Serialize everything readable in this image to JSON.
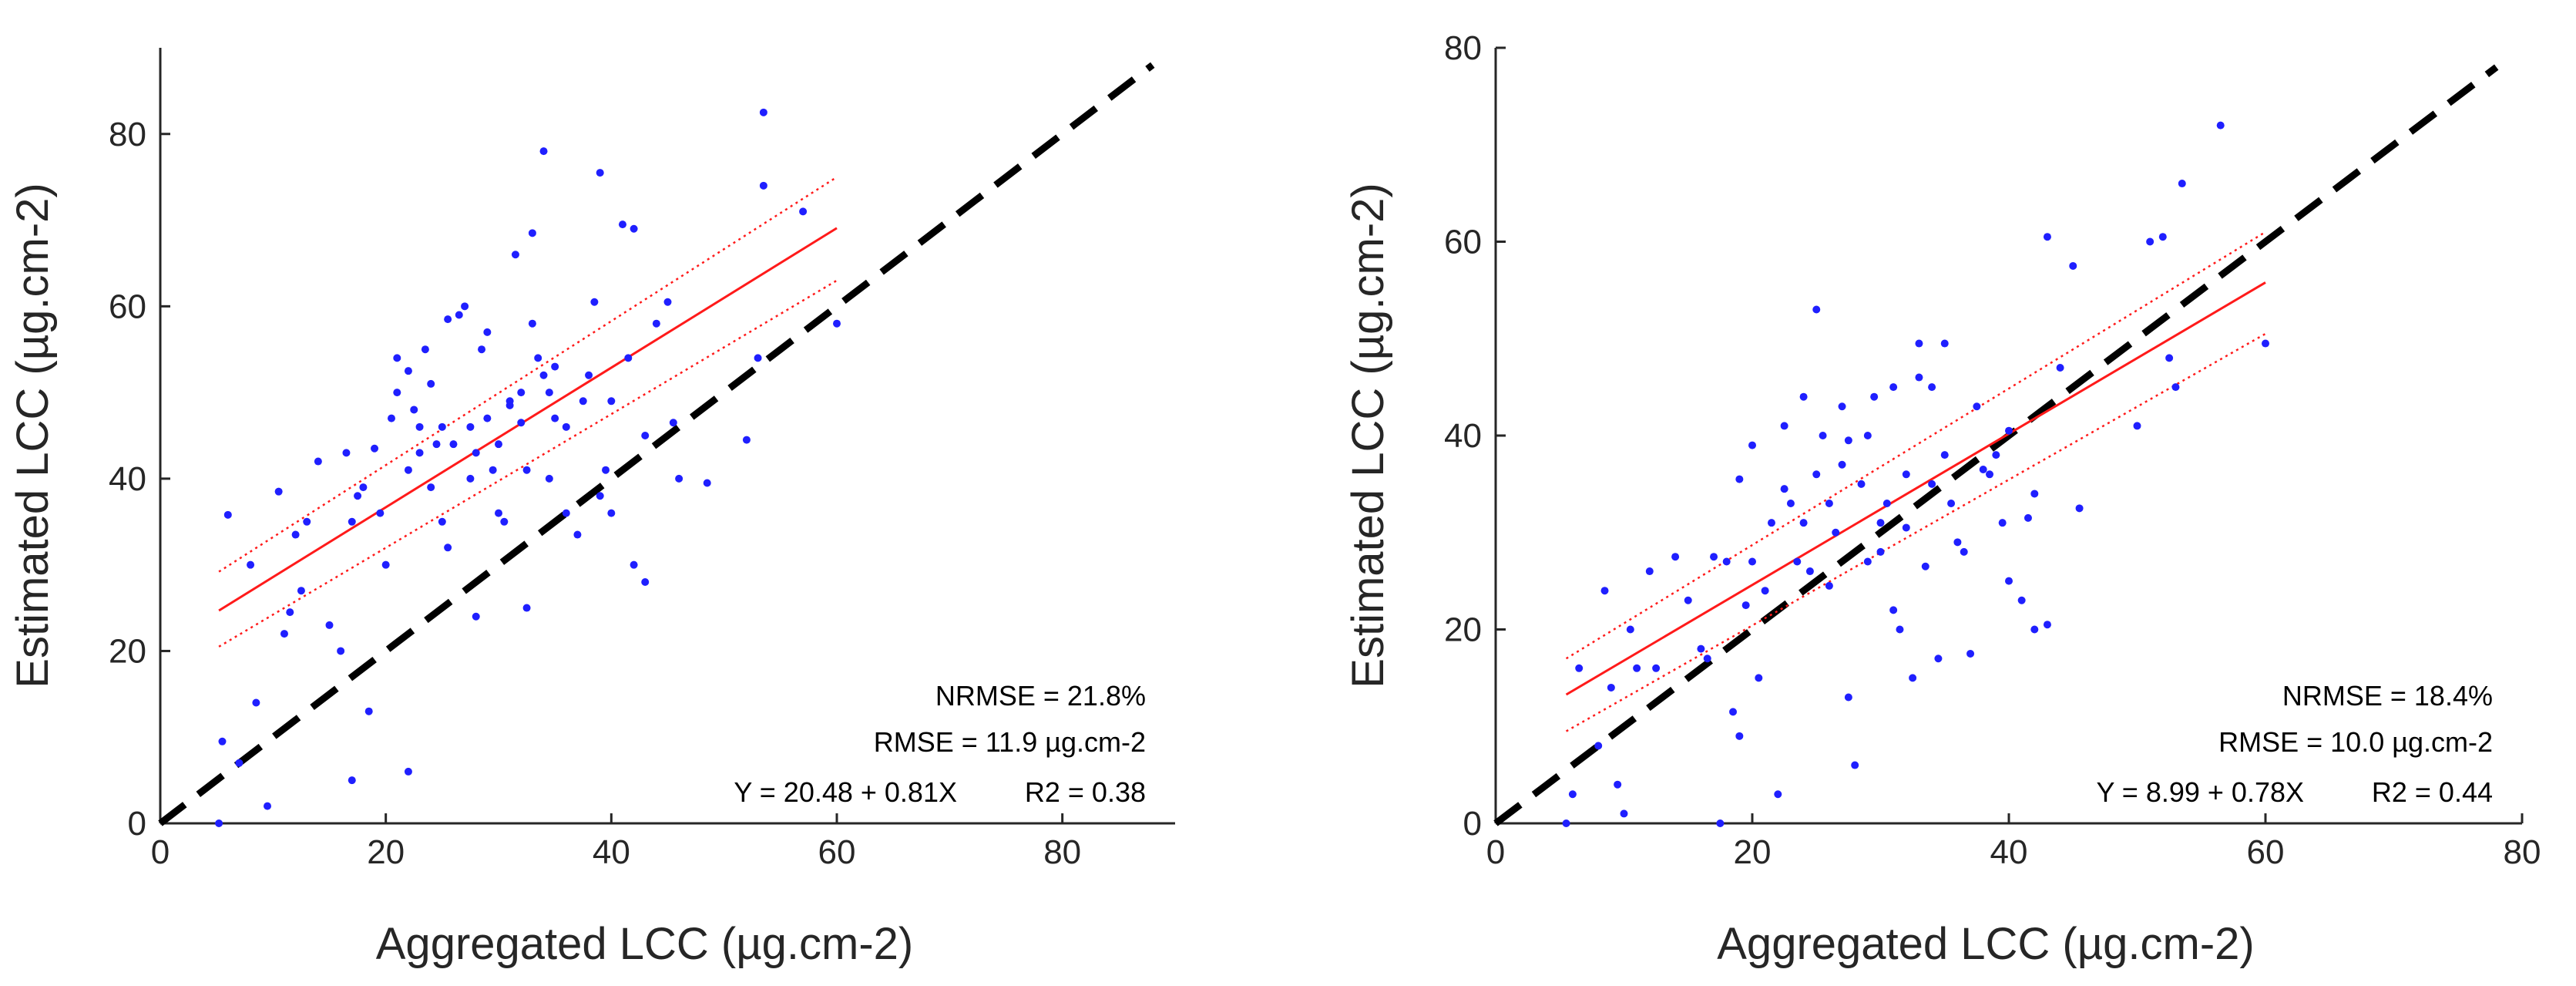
{
  "colors": {
    "points": "#1f1fff",
    "fit": "#ff1a1a",
    "identity": "#000000",
    "axis": "#262626"
  },
  "chart_data": [
    {
      "type": "scatter",
      "xlabel": "Aggregated LCC (µg.cm-2)",
      "ylabel": "Estimated LCC (µg.cm-2)",
      "xlim": [
        0,
        90
      ],
      "ylim": [
        0,
        90
      ],
      "xticks": [
        0,
        20,
        40,
        60,
        80
      ],
      "yticks": [
        0,
        20,
        40,
        60,
        80
      ],
      "grid": false,
      "annotations": [
        "NRMSE = 21.8%",
        "RMSE = 11.9 µg.cm-2",
        "Y = 20.48 + 0.81X",
        "R2 = 0.38"
      ],
      "fit": {
        "intercept": 20.48,
        "slope": 0.81,
        "x_range": [
          5.2,
          60
        ]
      },
      "ci_upper": [
        [
          5.2,
          29.2
        ],
        [
          60,
          75
        ]
      ],
      "ci_lower": [
        [
          5.2,
          20.5
        ],
        [
          60,
          63
        ]
      ],
      "identity_line": [
        [
          0,
          0
        ],
        [
          88,
          88
        ]
      ],
      "points": [
        [
          5.2,
          0
        ],
        [
          5.5,
          9.5
        ],
        [
          6,
          35.8
        ],
        [
          7,
          7
        ],
        [
          8,
          30
        ],
        [
          8.5,
          14
        ],
        [
          9.5,
          2
        ],
        [
          10.5,
          38.5
        ],
        [
          11,
          22
        ],
        [
          11.5,
          24.5
        ],
        [
          12,
          33.5
        ],
        [
          12.5,
          27
        ],
        [
          13,
          35
        ],
        [
          14,
          42
        ],
        [
          15,
          23
        ],
        [
          16,
          20
        ],
        [
          16.5,
          43
        ],
        [
          17,
          35
        ],
        [
          17.5,
          38
        ],
        [
          18,
          39
        ],
        [
          18.5,
          13
        ],
        [
          17,
          5
        ],
        [
          19,
          43.5
        ],
        [
          19.5,
          36
        ],
        [
          20,
          30
        ],
        [
          20.5,
          47
        ],
        [
          21,
          50
        ],
        [
          21,
          54
        ],
        [
          22,
          41
        ],
        [
          22,
          52.5
        ],
        [
          22,
          6
        ],
        [
          22.5,
          48
        ],
        [
          23,
          43
        ],
        [
          23,
          46
        ],
        [
          23.5,
          55
        ],
        [
          24,
          51
        ],
        [
          24,
          39
        ],
        [
          24.5,
          44
        ],
        [
          25,
          46
        ],
        [
          25.5,
          58.5
        ],
        [
          25,
          35
        ],
        [
          25.5,
          32
        ],
        [
          26,
          44
        ],
        [
          26.5,
          59
        ],
        [
          27,
          60
        ],
        [
          27.5,
          40
        ],
        [
          27.5,
          46
        ],
        [
          28,
          24
        ],
        [
          28,
          43
        ],
        [
          28.5,
          55
        ],
        [
          29,
          57
        ],
        [
          29,
          47
        ],
        [
          29.5,
          41
        ],
        [
          30,
          44
        ],
        [
          30,
          36
        ],
        [
          30.5,
          35
        ],
        [
          31,
          49
        ],
        [
          31,
          48.5
        ],
        [
          31.5,
          66
        ],
        [
          32,
          50
        ],
        [
          32,
          46.5
        ],
        [
          32.5,
          41
        ],
        [
          32.5,
          25
        ],
        [
          33,
          68.5
        ],
        [
          33,
          58
        ],
        [
          33.5,
          54
        ],
        [
          34,
          52
        ],
        [
          34,
          78
        ],
        [
          34.5,
          50
        ],
        [
          34.5,
          40
        ],
        [
          35,
          53
        ],
        [
          35,
          47
        ],
        [
          36,
          36
        ],
        [
          36,
          46
        ],
        [
          37,
          33.5
        ],
        [
          37.5,
          49
        ],
        [
          38,
          52
        ],
        [
          38.5,
          60.5
        ],
        [
          39,
          75.5
        ],
        [
          39,
          38
        ],
        [
          39.5,
          41
        ],
        [
          40,
          49
        ],
        [
          40,
          36
        ],
        [
          41,
          69.5
        ],
        [
          41.5,
          54
        ],
        [
          42,
          69
        ],
        [
          42,
          30
        ],
        [
          43,
          45
        ],
        [
          43,
          28
        ],
        [
          44,
          58
        ],
        [
          45,
          60.5
        ],
        [
          45.5,
          46.5
        ],
        [
          46,
          40
        ],
        [
          48.5,
          39.5
        ],
        [
          52,
          44.5
        ],
        [
          53,
          54
        ],
        [
          53.5,
          82.5
        ],
        [
          53.5,
          74
        ],
        [
          57,
          71
        ],
        [
          60,
          58
        ]
      ]
    },
    {
      "type": "scatter",
      "xlabel": "Aggregated LCC (µg.cm-2)",
      "ylabel": "Estimated LCC (µg.cm-2)",
      "xlim": [
        0,
        80
      ],
      "ylim": [
        0,
        80
      ],
      "xticks": [
        0,
        20,
        40,
        60,
        80
      ],
      "yticks": [
        0,
        20,
        40,
        60,
        80
      ],
      "grid": false,
      "annotations": [
        "NRMSE = 18.4%",
        "RMSE = 10.0 µg.cm-2",
        "Y = 8.99 + 0.78X",
        "R2 = 0.44"
      ],
      "fit": {
        "intercept": 8.99,
        "slope": 0.78,
        "x_range": [
          5.5,
          60
        ]
      },
      "ci_upper": [
        [
          5.5,
          17
        ],
        [
          60,
          61
        ]
      ],
      "ci_lower": [
        [
          5.5,
          9.5
        ],
        [
          60,
          50.5
        ]
      ],
      "identity_line": [
        [
          0,
          0
        ],
        [
          78,
          78
        ]
      ],
      "points": [
        [
          5.5,
          0
        ],
        [
          6,
          3
        ],
        [
          6.5,
          16
        ],
        [
          8,
          8
        ],
        [
          8.5,
          24
        ],
        [
          9,
          14
        ],
        [
          9.5,
          4
        ],
        [
          10,
          1
        ],
        [
          10.5,
          20
        ],
        [
          11,
          16
        ],
        [
          12,
          26
        ],
        [
          12.5,
          16
        ],
        [
          14,
          27.5
        ],
        [
          15,
          23
        ],
        [
          16,
          18
        ],
        [
          16.5,
          17
        ],
        [
          17,
          27.5
        ],
        [
          17.5,
          0
        ],
        [
          18,
          27
        ],
        [
          18.5,
          11.5
        ],
        [
          19,
          35.5
        ],
        [
          19,
          9
        ],
        [
          19.5,
          22.5
        ],
        [
          20,
          39
        ],
        [
          20,
          27
        ],
        [
          20.5,
          15
        ],
        [
          21,
          24
        ],
        [
          21.5,
          31
        ],
        [
          22,
          3
        ],
        [
          22.5,
          41
        ],
        [
          22.5,
          34.5
        ],
        [
          23,
          33
        ],
        [
          23.5,
          27
        ],
        [
          24,
          44
        ],
        [
          24,
          31
        ],
        [
          24.5,
          26
        ],
        [
          25,
          53
        ],
        [
          25,
          36
        ],
        [
          25.5,
          40
        ],
        [
          26,
          33
        ],
        [
          26,
          24.5
        ],
        [
          26.5,
          30
        ],
        [
          27,
          37
        ],
        [
          27,
          43
        ],
        [
          27.5,
          39.5
        ],
        [
          27.5,
          13
        ],
        [
          28,
          6
        ],
        [
          28.5,
          35
        ],
        [
          29,
          40
        ],
        [
          29,
          27
        ],
        [
          29.5,
          44
        ],
        [
          30,
          31
        ],
        [
          30,
          28
        ],
        [
          30.5,
          33
        ],
        [
          31,
          22
        ],
        [
          31,
          45
        ],
        [
          31.5,
          20
        ],
        [
          32,
          36
        ],
        [
          32,
          30.5
        ],
        [
          32.5,
          15
        ],
        [
          33,
          49.5
        ],
        [
          33,
          46
        ],
        [
          33.5,
          26.5
        ],
        [
          34,
          35
        ],
        [
          34,
          45
        ],
        [
          34.5,
          17
        ],
        [
          35,
          49.5
        ],
        [
          35,
          38
        ],
        [
          35.5,
          33
        ],
        [
          36,
          29
        ],
        [
          36.5,
          28
        ],
        [
          37,
          17.5
        ],
        [
          37.5,
          43
        ],
        [
          38,
          36.5
        ],
        [
          38.5,
          36
        ],
        [
          39,
          38
        ],
        [
          39.5,
          31
        ],
        [
          40,
          40.5
        ],
        [
          40,
          25
        ],
        [
          41,
          23
        ],
        [
          41.5,
          31.5
        ],
        [
          42,
          34
        ],
        [
          42,
          20
        ],
        [
          43,
          60.5
        ],
        [
          43,
          20.5
        ],
        [
          44,
          47
        ],
        [
          45,
          57.5
        ],
        [
          45.5,
          32.5
        ],
        [
          50,
          41
        ],
        [
          51,
          60
        ],
        [
          52,
          60.5
        ],
        [
          52.5,
          48
        ],
        [
          53,
          45
        ],
        [
          53.5,
          66
        ],
        [
          56.5,
          72
        ],
        [
          60,
          49.5
        ]
      ]
    }
  ]
}
